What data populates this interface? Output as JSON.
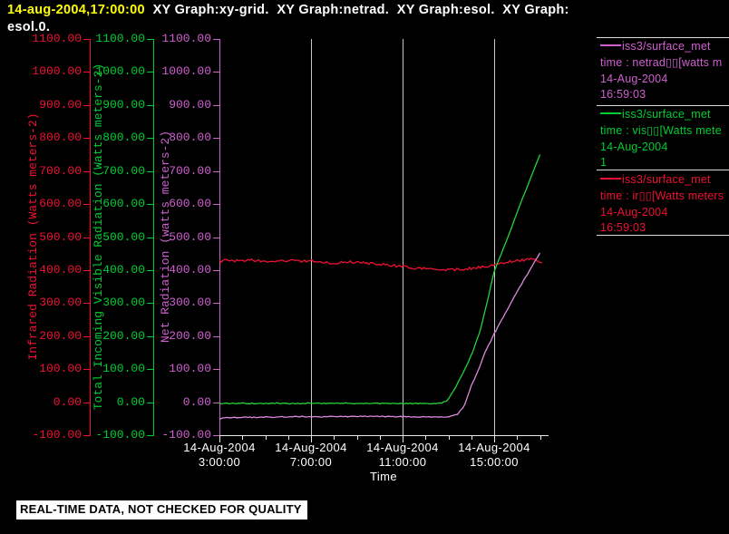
{
  "title": {
    "timestamp": "14-aug-2004,17:00:00",
    "graphs": "  XY Graph:xy-grid.  XY Graph:netrad.  XY Graph:esol.  XY Graph:",
    "line2": "esol.0."
  },
  "footer": {
    "text": "REAL-TIME DATA, NOT CHECKED FOR QUALITY"
  },
  "colors": {
    "background": "#000000",
    "title_timestamp": "#ffff00",
    "title_text": "#ffffff",
    "grid": "#c8c8c8",
    "axis_line": "#e8e8e8",
    "legend_separator": "#dcdcdc",
    "x_label": "#ffffff"
  },
  "chart_data": {
    "type": "line",
    "xlabel": "Time",
    "x_range_hours": [
      3,
      17.4
    ],
    "ylim": [
      -100,
      1100
    ],
    "y_tick_step": 100,
    "grid": "vertical-only",
    "legend_position": "right",
    "y_tick_labels": [
      "1100.00",
      "1000.00",
      "900.00",
      "800.00",
      "700.00",
      "600.00",
      "500.00",
      "400.00",
      "300.00",
      "200.00",
      "100.00",
      "0.00",
      "-100.00"
    ],
    "x_tick_labels": [
      {
        "hour": 3,
        "date": "14-Aug-2004",
        "time": "3:00:00"
      },
      {
        "hour": 7,
        "date": "14-Aug-2004",
        "time": "7:00:00"
      },
      {
        "hour": 11,
        "date": "14-Aug-2004",
        "time": "11:00:00"
      },
      {
        "hour": 15,
        "date": "14-Aug-2004",
        "time": "15:00:00"
      }
    ],
    "x_minor_tick_hours": [
      3,
      4,
      5,
      6,
      7,
      8,
      9,
      10,
      11,
      12,
      13,
      14,
      15,
      16,
      17
    ],
    "gridline_hours": [
      7,
      11,
      15
    ],
    "series": [
      {
        "name": "netrad",
        "axis_label": "Net Radiation (watts meters-2)",
        "color": "#d05fd0",
        "curve_color": "#dd8ade",
        "noise": 0.5,
        "legend": [
          "iss3/surface_met",
          "time : netrad▯▯[watts m",
          "14-Aug-2004",
          "16:59:03"
        ],
        "points": [
          [
            3.0,
            -52
          ],
          [
            3.15,
            -48
          ],
          [
            3.5,
            -47
          ],
          [
            4.0,
            -46
          ],
          [
            4.5,
            -46
          ],
          [
            5.0,
            -45
          ],
          [
            5.5,
            -45
          ],
          [
            6.0,
            -44
          ],
          [
            6.5,
            -44
          ],
          [
            7.0,
            -44
          ],
          [
            7.5,
            -44
          ],
          [
            8.0,
            -44
          ],
          [
            8.5,
            -44
          ],
          [
            9.0,
            -43
          ],
          [
            9.5,
            -43
          ],
          [
            10.0,
            -43
          ],
          [
            10.5,
            -44
          ],
          [
            11.0,
            -44
          ],
          [
            11.5,
            -44
          ],
          [
            12.0,
            -45
          ],
          [
            12.5,
            -45
          ],
          [
            12.9,
            -45
          ],
          [
            13.1,
            -43
          ],
          [
            13.4,
            -38
          ],
          [
            13.7,
            -10
          ],
          [
            14.0,
            50
          ],
          [
            14.3,
            95
          ],
          [
            14.6,
            150
          ],
          [
            15.0,
            207
          ],
          [
            15.4,
            258
          ],
          [
            15.8,
            310
          ],
          [
            16.2,
            358
          ],
          [
            16.6,
            405
          ],
          [
            17.0,
            452
          ]
        ]
      },
      {
        "name": "vis",
        "axis_label": "Total Incoming Visible Radiation (Watts meters-2)",
        "color": "#00cd32",
        "curve_color": "#22d43a",
        "noise": 0.5,
        "legend": [
          "iss3/surface_met",
          "time : vis▯▯[Watts mete",
          "14-Aug-2004",
          "1"
        ],
        "points": [
          [
            3.0,
            -4
          ],
          [
            3.5,
            -4
          ],
          [
            4.0,
            -3
          ],
          [
            4.5,
            -4
          ],
          [
            5.0,
            -4
          ],
          [
            5.5,
            -3
          ],
          [
            6.0,
            -4
          ],
          [
            6.5,
            -4
          ],
          [
            7.0,
            -3
          ],
          [
            7.5,
            -4
          ],
          [
            8.0,
            -4
          ],
          [
            8.5,
            -3
          ],
          [
            9.0,
            -4
          ],
          [
            9.5,
            -4
          ],
          [
            10.0,
            -4
          ],
          [
            10.5,
            -4
          ],
          [
            11.0,
            -4
          ],
          [
            11.5,
            -4
          ],
          [
            12.0,
            -4
          ],
          [
            12.4,
            -4
          ],
          [
            12.7,
            -2
          ],
          [
            12.95,
            5
          ],
          [
            13.2,
            30
          ],
          [
            13.5,
            70
          ],
          [
            13.8,
            110
          ],
          [
            14.1,
            160
          ],
          [
            14.4,
            220
          ],
          [
            14.7,
            305
          ],
          [
            15.0,
            395
          ],
          [
            15.3,
            448
          ],
          [
            15.6,
            500
          ],
          [
            16.0,
            575
          ],
          [
            16.5,
            663
          ],
          [
            17.0,
            750
          ]
        ]
      },
      {
        "name": "ir",
        "axis_label": "Infrared Radiation (Watts meters-2)",
        "color": "#ee1133",
        "curve_color": "#ee1133",
        "noise": 1.4,
        "legend": [
          "iss3/surface_met",
          "time : ir▯▯[Watts meters",
          "14-Aug-2004",
          "16:59:03"
        ],
        "points": [
          [
            3.0,
            426
          ],
          [
            3.3,
            429
          ],
          [
            3.6,
            428
          ],
          [
            4.0,
            429
          ],
          [
            4.4,
            430
          ],
          [
            4.8,
            428
          ],
          [
            5.2,
            427
          ],
          [
            5.6,
            428
          ],
          [
            6.0,
            429
          ],
          [
            6.4,
            428
          ],
          [
            6.8,
            428
          ],
          [
            7.2,
            427
          ],
          [
            7.6,
            423
          ],
          [
            8.0,
            421
          ],
          [
            8.4,
            423
          ],
          [
            8.8,
            425
          ],
          [
            9.2,
            423
          ],
          [
            9.6,
            420
          ],
          [
            10.0,
            418
          ],
          [
            10.4,
            415
          ],
          [
            10.8,
            412
          ],
          [
            11.2,
            410
          ],
          [
            11.6,
            406
          ],
          [
            12.0,
            404
          ],
          [
            12.4,
            402
          ],
          [
            12.8,
            401
          ],
          [
            13.2,
            401
          ],
          [
            13.6,
            403
          ],
          [
            14.0,
            405
          ],
          [
            14.4,
            409
          ],
          [
            14.8,
            413
          ],
          [
            15.2,
            419
          ],
          [
            15.6,
            425
          ],
          [
            16.0,
            429
          ],
          [
            16.3,
            431
          ],
          [
            16.6,
            433
          ],
          [
            16.8,
            429
          ],
          [
            17.0,
            426
          ],
          [
            17.1,
            423
          ]
        ]
      }
    ]
  }
}
